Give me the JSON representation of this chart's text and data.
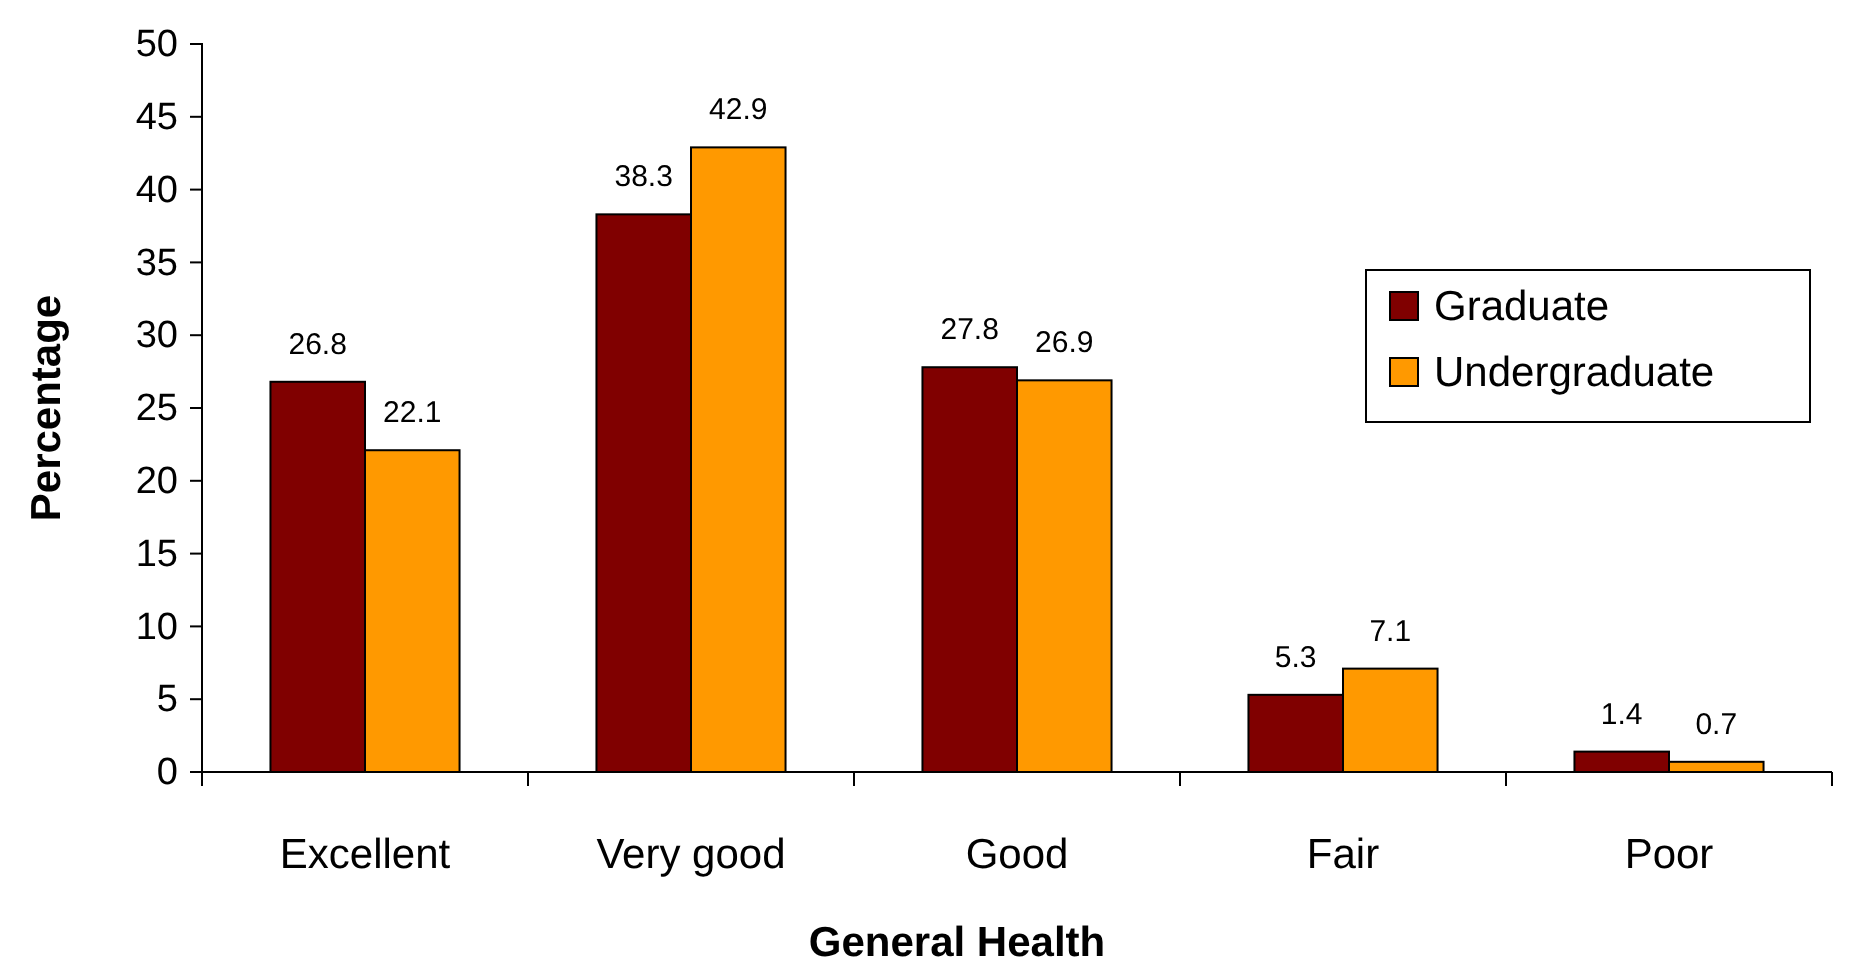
{
  "chart_data": {
    "type": "bar",
    "xlabel": "General Health",
    "ylabel": "Percentage",
    "categories": [
      "Excellent",
      "Very good",
      "Good",
      "Fair",
      "Poor"
    ],
    "series": [
      {
        "name": "Graduate",
        "color": "#800000",
        "values": [
          26.8,
          38.3,
          27.8,
          5.3,
          1.4
        ]
      },
      {
        "name": "Undergraduate",
        "color": "#ff9900",
        "values": [
          22.1,
          42.9,
          26.9,
          7.1,
          0.7
        ]
      }
    ],
    "ylim": [
      0,
      50
    ],
    "yticks": [
      0,
      5,
      10,
      15,
      20,
      25,
      30,
      35,
      40,
      45,
      50
    ],
    "grid": false,
    "legend": "right",
    "data_labels": true
  }
}
